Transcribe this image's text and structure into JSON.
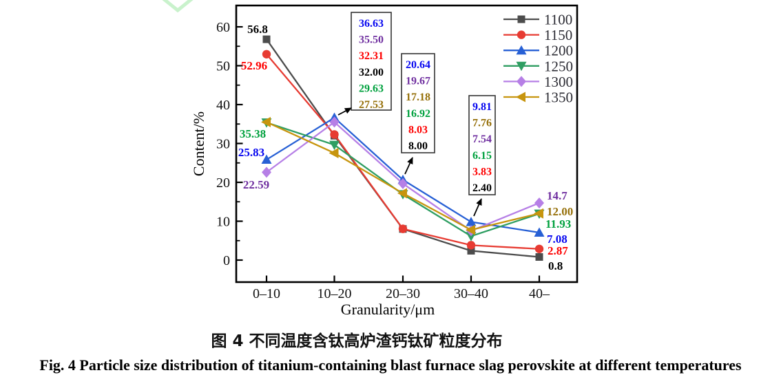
{
  "figure": {
    "caption_zh": "图 4 不同温度含钛高炉渣钙钛矿粒度分布",
    "caption_en": "Fig. 4  Particle size distribution of titanium-containing blast furnace slag perovskite at different temperatures"
  },
  "watermark": {
    "color": "#c9f2cc"
  },
  "chart_data": {
    "type": "line",
    "title": "",
    "xlabel": "Granularity/μm",
    "ylabel": "Content/%",
    "ylim": [
      0,
      60
    ],
    "yticks": [
      "0",
      "10",
      "20",
      "30",
      "40",
      "50",
      "60"
    ],
    "grid": false,
    "legend_position": "top-right-inside",
    "categories": [
      "0–10",
      "10–20",
      "20–30",
      "30–40",
      "40–"
    ],
    "series": [
      {
        "name": "1100",
        "marker": "square",
        "color": "#4c4c4c",
        "label_color": "#000000",
        "values": [
          56.8,
          32.0,
          8.0,
          2.4,
          0.8
        ],
        "value_labels": [
          "56.8",
          "32.00",
          "8.00",
          "2.40",
          "0.8"
        ],
        "first_label_shown": true
      },
      {
        "name": "1150",
        "marker": "circle",
        "color": "#e73b32",
        "label_color": "#fe0000",
        "values": [
          52.96,
          32.31,
          8.03,
          3.83,
          2.87
        ],
        "value_labels": [
          "52.96",
          "32.31",
          "8.03",
          "3.83",
          "2.87"
        ],
        "first_label_shown": true
      },
      {
        "name": "1200",
        "marker": "triangle-up",
        "color": "#2760d5",
        "label_color": "#0707f0",
        "values": [
          25.83,
          36.63,
          20.64,
          9.81,
          7.08
        ],
        "value_labels": [
          "25.83",
          "36.63",
          "20.64",
          "9.81",
          "7.08"
        ],
        "first_label_shown": true
      },
      {
        "name": "1250",
        "marker": "triangle-down",
        "color": "#2f9e62",
        "label_color": "#00a13e",
        "values": [
          35.38,
          29.63,
          16.92,
          6.15,
          11.93
        ],
        "value_labels": [
          "35.38",
          "29.63",
          "16.92",
          "6.15",
          "11.93"
        ],
        "first_label_shown": true
      },
      {
        "name": "1300",
        "marker": "diamond",
        "color": "#b67fe6",
        "label_color": "#7030a0",
        "values": [
          22.59,
          35.5,
          19.67,
          7.54,
          14.7
        ],
        "value_labels": [
          "22.59",
          "35.50",
          "19.67",
          "7.54",
          "14.7"
        ],
        "first_label_shown": true
      },
      {
        "name": "1350",
        "marker": "triangle-left",
        "color": "#c7950e",
        "label_color": "#96700a",
        "values": [
          35.5,
          27.53,
          17.18,
          7.76,
          12.0
        ],
        "value_labels": [
          null,
          "27.53",
          "17.18",
          "7.76",
          "12.00"
        ],
        "first_label_shown": false
      }
    ],
    "legend": [
      "1100",
      "1150",
      "1200",
      "1250",
      "1300",
      "1350"
    ],
    "annotation_boxes": [
      {
        "category": "10–20",
        "entries": [
          {
            "series": "1200",
            "text": "36.63"
          },
          {
            "series": "1300",
            "text": "35.50"
          },
          {
            "series": "1150",
            "text": "32.31"
          },
          {
            "series": "1100",
            "text": "32.00"
          },
          {
            "series": "1250",
            "text": "29.63"
          },
          {
            "series": "1350",
            "text": "27.53"
          }
        ]
      },
      {
        "category": "20–30",
        "entries": [
          {
            "series": "1200",
            "text": "20.64"
          },
          {
            "series": "1300",
            "text": "19.67"
          },
          {
            "series": "1350",
            "text": "17.18"
          },
          {
            "series": "1250",
            "text": "16.92"
          },
          {
            "series": "1150",
            "text": "8.03"
          },
          {
            "series": "1100",
            "text": "8.00"
          }
        ]
      },
      {
        "category": "30–40",
        "entries": [
          {
            "series": "1200",
            "text": "9.81"
          },
          {
            "series": "1350",
            "text": "7.76"
          },
          {
            "series": "1300",
            "text": "7.54"
          },
          {
            "series": "1250",
            "text": "6.15"
          },
          {
            "series": "1150",
            "text": "3.83"
          },
          {
            "series": "1100",
            "text": "2.40"
          }
        ]
      }
    ]
  }
}
